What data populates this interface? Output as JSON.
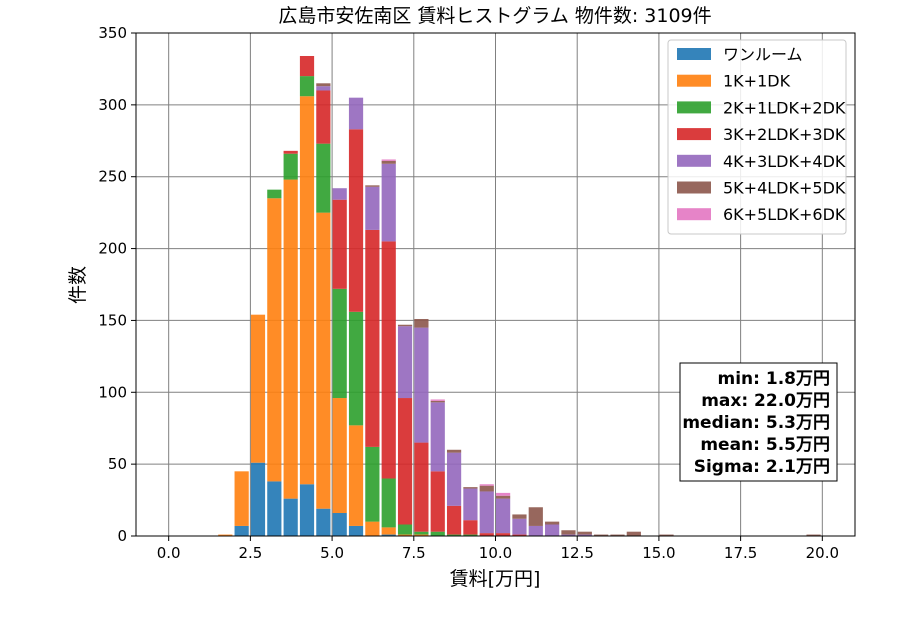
{
  "chart_data": {
    "type": "bar",
    "stacked": true,
    "title": "広島市安佐南区 賃料ヒストグラム 物件数: 3109件",
    "xlabel": "賃料[万円]",
    "ylabel": "件数",
    "xlim": [
      -1.0,
      21.0
    ],
    "ylim": [
      0,
      350
    ],
    "xticks": [
      0.0,
      2.5,
      5.0,
      7.5,
      10.0,
      12.5,
      15.0,
      17.5,
      20.0
    ],
    "xtick_labels": [
      "0.0",
      "2.5",
      "5.0",
      "7.5",
      "10.0",
      "12.5",
      "15.0",
      "17.5",
      "20.0"
    ],
    "yticks": [
      0,
      50,
      100,
      150,
      200,
      250,
      300,
      350
    ],
    "ytick_labels": [
      "0",
      "50",
      "100",
      "150",
      "200",
      "250",
      "300",
      "350"
    ],
    "grid": true,
    "legend_position": "top-right",
    "bin_width": 0.5,
    "bin_starts": [
      1.5,
      2.0,
      2.5,
      3.0,
      3.5,
      4.0,
      4.5,
      5.0,
      5.5,
      6.0,
      6.5,
      7.0,
      7.5,
      8.0,
      8.5,
      9.0,
      9.5,
      10.0,
      10.5,
      11.0,
      11.5,
      12.0,
      12.5,
      13.0,
      13.5,
      14.0,
      15.0,
      19.5
    ],
    "series": [
      {
        "name": "ワンルーム",
        "color": "#1f77b4",
        "values": [
          0,
          7,
          51,
          38,
          26,
          36,
          19,
          16,
          7,
          0,
          1,
          0,
          0,
          0,
          0,
          0,
          0,
          0,
          0,
          0,
          0,
          0,
          0,
          0,
          0,
          0,
          0,
          0
        ]
      },
      {
        "name": "1K+1DK",
        "color": "#ff7f0e",
        "values": [
          1,
          38,
          103,
          197,
          222,
          270,
          206,
          80,
          70,
          10,
          5,
          1,
          1,
          0,
          0,
          0,
          0,
          0,
          0,
          0,
          0,
          0,
          0,
          0,
          0,
          0,
          0,
          0
        ]
      },
      {
        "name": "2K+1LDK+2DK",
        "color": "#2ca02c",
        "values": [
          0,
          0,
          0,
          6,
          18,
          14,
          48,
          76,
          79,
          52,
          34,
          7,
          2,
          3,
          1,
          1,
          0,
          0,
          0,
          0,
          0,
          0,
          0,
          0,
          0,
          0,
          0,
          0
        ]
      },
      {
        "name": "3K+2LDK+3DK",
        "color": "#d62728",
        "values": [
          0,
          0,
          0,
          0,
          2,
          14,
          37,
          62,
          127,
          151,
          165,
          88,
          62,
          42,
          20,
          10,
          2,
          2,
          1,
          0,
          0,
          0,
          0,
          0,
          0,
          0,
          0,
          0
        ]
      },
      {
        "name": "4K+3LDK+4DK",
        "color": "#9467bd",
        "values": [
          0,
          0,
          0,
          0,
          0,
          0,
          3,
          8,
          22,
          30,
          54,
          50,
          80,
          48,
          37,
          22,
          29,
          24,
          11,
          7,
          8,
          1,
          1,
          0,
          0,
          0,
          0,
          0
        ]
      },
      {
        "name": "5K+4LDK+5DK",
        "color": "#8c564b",
        "values": [
          0,
          0,
          0,
          0,
          0,
          0,
          2,
          0,
          0,
          1,
          2,
          1,
          6,
          1,
          2,
          1,
          4,
          2,
          3,
          13,
          2,
          3,
          2,
          1,
          1,
          3,
          1,
          1
        ]
      },
      {
        "name": "6K+5LDK+6DK",
        "color": "#e377c2",
        "values": [
          0,
          0,
          0,
          0,
          0,
          0,
          0,
          0,
          0,
          0,
          1,
          0,
          0,
          1,
          0,
          0,
          1,
          2,
          0,
          0,
          0,
          0,
          0,
          0,
          0,
          0,
          0,
          0
        ]
      }
    ],
    "stats": [
      "min: 1.8万円",
      "max: 22.0万円",
      "median: 5.3万円",
      "mean: 5.5万円",
      "Sigma: 2.1万円"
    ]
  }
}
